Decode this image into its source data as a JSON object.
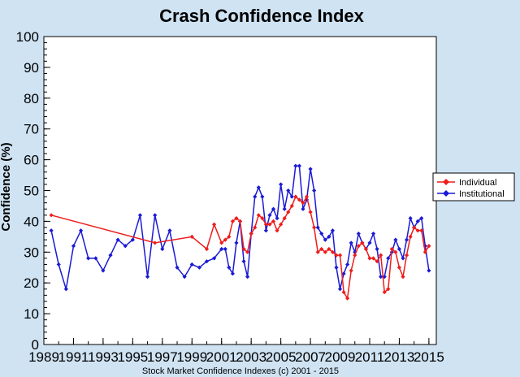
{
  "chart_data": {
    "type": "line",
    "title": "Crash Confidence Index",
    "xlabel": "Stock Market Confidence Indexes (c) 2001 - 2015",
    "ylabel": "Confidence (%)",
    "xlim": [
      1989,
      2015.5
    ],
    "ylim": [
      0,
      100
    ],
    "x_ticks": [
      "1989",
      "1991",
      "1993",
      "1995",
      "1997",
      "1999",
      "2001",
      "2003",
      "2005",
      "2007",
      "2009",
      "2011",
      "2013",
      "2015"
    ],
    "y_ticks": [
      "0",
      "10",
      "20",
      "30",
      "40",
      "50",
      "60",
      "70",
      "80",
      "90",
      "100"
    ],
    "grid": false,
    "legend_position": "right",
    "series": [
      {
        "name": "Institutional",
        "color": "#1a1ad6",
        "x": [
          1989.5,
          1990.0,
          1990.5,
          1991.0,
          1991.5,
          1992.0,
          1992.5,
          1993.0,
          1993.5,
          1994.0,
          1994.5,
          1995.0,
          1995.5,
          1996.0,
          1996.5,
          1997.0,
          1997.5,
          1998.0,
          1998.5,
          1999.0,
          1999.5,
          2000.0,
          2000.5,
          2001.0,
          2001.25,
          2001.5,
          2001.75,
          2002.0,
          2002.25,
          2002.5,
          2002.75,
          2003.0,
          2003.25,
          2003.5,
          2003.75,
          2004.0,
          2004.25,
          2004.5,
          2004.75,
          2005.0,
          2005.25,
          2005.5,
          2005.75,
          2006.0,
          2006.25,
          2006.5,
          2006.75,
          2007.0,
          2007.25,
          2007.5,
          2007.75,
          2008.0,
          2008.25,
          2008.5,
          2008.75,
          2009.0,
          2009.25,
          2009.5,
          2009.75,
          2010.0,
          2010.25,
          2010.5,
          2010.75,
          2011.0,
          2011.25,
          2011.5,
          2011.75,
          2012.0,
          2012.25,
          2012.5,
          2012.75,
          2013.0,
          2013.25,
          2013.5,
          2013.75,
          2014.0,
          2014.25,
          2014.5,
          2014.75,
          2015.0
        ],
        "y": [
          37,
          26,
          18,
          32,
          37,
          28,
          28,
          24,
          29,
          34,
          32,
          34,
          42,
          22,
          42,
          31,
          37,
          25,
          22,
          26,
          25,
          27,
          28,
          31,
          31,
          25,
          23,
          33,
          40,
          27,
          22,
          36,
          48,
          51,
          48,
          37,
          42,
          44,
          41,
          52,
          44,
          50,
          48,
          58,
          58,
          44,
          47,
          57,
          50,
          38,
          36,
          34,
          35,
          37,
          25,
          18,
          23,
          26,
          33,
          30,
          36,
          33,
          31,
          33,
          36,
          31,
          22,
          22,
          28,
          30,
          34,
          31,
          28,
          34,
          41,
          38,
          40,
          41,
          32,
          24
        ]
      },
      {
        "name": "Individual",
        "color": "#ee1c1c",
        "x": [
          1989.5,
          1996.5,
          1999.0,
          2000.0,
          2000.5,
          2001.0,
          2001.25,
          2001.5,
          2001.75,
          2002.0,
          2002.25,
          2002.5,
          2002.75,
          2003.0,
          2003.25,
          2003.5,
          2003.75,
          2004.0,
          2004.25,
          2004.5,
          2004.75,
          2005.0,
          2005.25,
          2005.5,
          2005.75,
          2006.0,
          2006.25,
          2006.5,
          2006.75,
          2007.0,
          2007.25,
          2007.5,
          2007.75,
          2008.0,
          2008.25,
          2008.5,
          2008.75,
          2009.0,
          2009.25,
          2009.5,
          2009.75,
          2010.0,
          2010.25,
          2010.5,
          2010.75,
          2011.0,
          2011.25,
          2011.5,
          2011.75,
          2012.0,
          2012.25,
          2012.5,
          2012.75,
          2013.0,
          2013.25,
          2013.5,
          2013.75,
          2014.0,
          2014.25,
          2014.5,
          2014.75,
          2015.0
        ],
        "y": [
          42,
          33,
          35,
          31,
          39,
          33,
          34,
          35,
          40,
          41,
          40,
          31,
          30,
          36,
          38,
          42,
          41,
          39,
          39,
          40,
          37,
          39,
          41,
          43,
          45,
          48,
          47,
          46,
          48,
          43,
          38,
          30,
          31,
          30,
          31,
          30,
          29,
          29,
          17,
          15,
          24,
          29,
          32,
          33,
          31,
          28,
          28,
          27,
          29,
          17,
          18,
          31,
          30,
          25,
          22,
          29,
          35,
          38,
          37,
          37,
          30,
          32
        ]
      }
    ]
  }
}
